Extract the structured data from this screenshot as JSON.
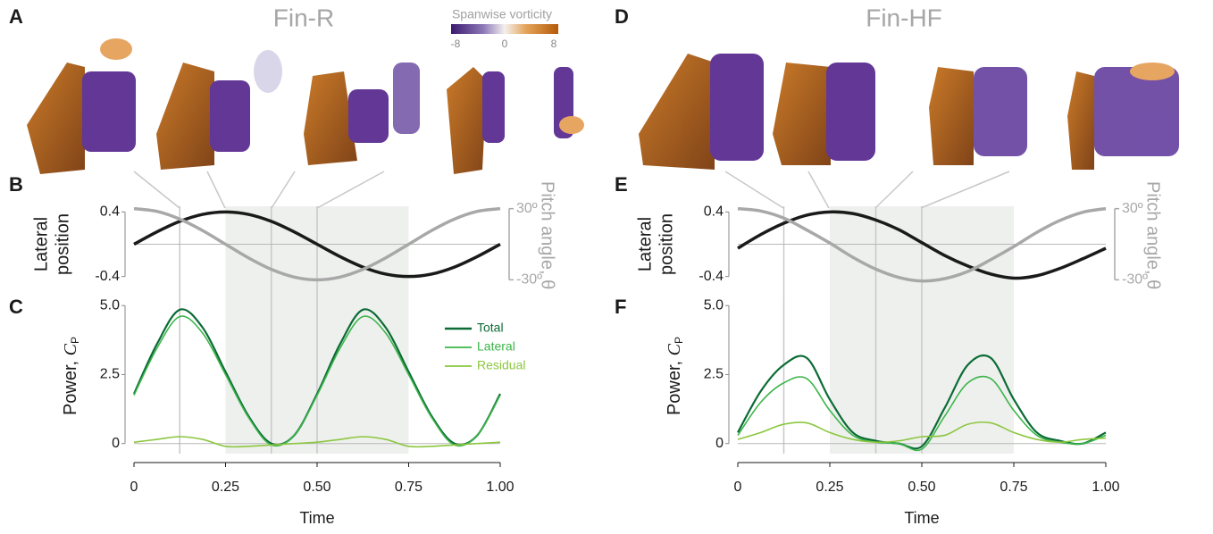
{
  "panel_labels": [
    "A",
    "B",
    "C",
    "D",
    "E",
    "F"
  ],
  "figures": [
    {
      "title": "Fin-R"
    },
    {
      "title": "Fin-HF"
    }
  ],
  "colorbar": {
    "title": "Spanwise vorticity",
    "ticks": [
      -8,
      0,
      8
    ]
  },
  "chart_data": [
    {
      "type": "line",
      "ylabel": [
        "Lateral",
        "position"
      ],
      "y2label": "Pitch  angle, θ",
      "x": [
        0,
        0.0625,
        0.125,
        0.1875,
        0.25,
        0.3125,
        0.375,
        0.4375,
        0.5,
        0.5625,
        0.625,
        0.6875,
        0.75,
        0.8125,
        0.875,
        0.9375,
        1
      ],
      "xlim": [
        0,
        1
      ],
      "ylim": [
        -0.47,
        0.47
      ],
      "yticks": [
        -0.4,
        0.4
      ],
      "y2lim": [
        -32,
        32
      ],
      "y2ticks": [
        {
          "value": -30,
          "label": "-30º"
        },
        {
          "value": 30,
          "label": "30º"
        }
      ],
      "shade": [
        0.25,
        0.75
      ],
      "marker_lines": [
        0.125,
        0.375,
        0.5
      ],
      "zero_line": true,
      "series": [
        {
          "color": "#1a1a1a",
          "values": [
            0,
            0.153,
            0.283,
            0.37,
            0.4,
            0.37,
            0.283,
            0.153,
            0,
            -0.153,
            -0.283,
            -0.37,
            -0.4,
            -0.37,
            -0.283,
            -0.153,
            0
          ]
        },
        {
          "color": "#a8a8a8",
          "axis": "y2",
          "values": [
            30,
            27.7,
            21.2,
            11.5,
            0,
            -11.5,
            -21.2,
            -27.7,
            -30,
            -27.7,
            -21.2,
            -11.5,
            0,
            11.5,
            21.2,
            27.7,
            30
          ]
        }
      ]
    },
    {
      "type": "line",
      "ylabel": [
        "Power, ",
        "C",
        "P"
      ],
      "xlabel": "Time",
      "x": [
        0,
        0.0625,
        0.125,
        0.1875,
        0.25,
        0.3125,
        0.375,
        0.4375,
        0.5,
        0.5625,
        0.625,
        0.6875,
        0.75,
        0.8125,
        0.875,
        0.9375,
        1
      ],
      "xlim": [
        0,
        1
      ],
      "xticks": [
        0,
        0.25,
        {
          "value": 0.5,
          "label": "0.50"
        },
        0.75,
        {
          "value": 1,
          "label": "1.00"
        }
      ],
      "ylim": [
        -0.3,
        5.2
      ],
      "yticks": [
        0,
        2.5,
        {
          "value": 5,
          "label": "5.0"
        }
      ],
      "shade": [
        0.25,
        0.75
      ],
      "marker_lines": [
        0.125,
        0.375,
        0.5
      ],
      "zero_line": true,
      "legend": "upper right",
      "series": [
        {
          "name": "Total",
          "color": "#0b6b35",
          "values": [
            1.8,
            3.6,
            4.85,
            4.2,
            2.6,
            1.0,
            0.0,
            0.3,
            1.8,
            3.6,
            4.85,
            4.2,
            2.6,
            1.0,
            0.0,
            0.3,
            1.8
          ]
        },
        {
          "name": "Lateral",
          "color": "#3cb54a",
          "values": [
            1.75,
            3.45,
            4.6,
            4.0,
            2.5,
            0.95,
            -0.05,
            0.3,
            1.75,
            3.45,
            4.6,
            4.0,
            2.5,
            0.95,
            -0.05,
            0.3,
            1.75
          ]
        },
        {
          "name": "Residual",
          "color": "#8cc63f",
          "values": [
            0.05,
            0.15,
            0.25,
            0.15,
            -0.1,
            -0.1,
            -0.05,
            0.0,
            0.05,
            0.15,
            0.25,
            0.15,
            -0.1,
            -0.1,
            -0.05,
            0.0,
            0.05
          ]
        }
      ]
    },
    {
      "type": "line",
      "ylabel": [
        "Lateral",
        "position"
      ],
      "y2label": "Pitch  angle, θ",
      "x": [
        0,
        0.0625,
        0.125,
        0.1875,
        0.25,
        0.3125,
        0.375,
        0.4375,
        0.5,
        0.5625,
        0.625,
        0.6875,
        0.75,
        0.8125,
        0.875,
        0.9375,
        1
      ],
      "xlim": [
        0,
        1
      ],
      "ylim": [
        -0.47,
        0.47
      ],
      "yticks": [
        -0.4,
        0.4
      ],
      "y2lim": [
        -32,
        32
      ],
      "y2ticks": [
        {
          "value": -30,
          "label": "-30º"
        },
        {
          "value": 30,
          "label": "30º"
        }
      ],
      "shade": [
        0.25,
        0.75
      ],
      "marker_lines": [
        0.125,
        0.375,
        0.5
      ],
      "zero_line": true,
      "series": [
        {
          "color": "#1a1a1a",
          "values": [
            -0.05,
            0.12,
            0.26,
            0.36,
            0.4,
            0.38,
            0.3,
            0.18,
            0.02,
            -0.14,
            -0.27,
            -0.37,
            -0.42,
            -0.39,
            -0.3,
            -0.18,
            -0.05
          ]
        },
        {
          "color": "#a8a8a8",
          "axis": "y2",
          "values": [
            30,
            28,
            22,
            12,
            1,
            -11,
            -21,
            -28,
            -31,
            -29,
            -23,
            -13,
            -2,
            10,
            20,
            27,
            30
          ]
        }
      ]
    },
    {
      "type": "line",
      "ylabel": [
        "Power, ",
        "C",
        "P"
      ],
      "xlabel": "Time",
      "x": [
        0,
        0.0625,
        0.125,
        0.1875,
        0.25,
        0.3125,
        0.375,
        0.4375,
        0.5,
        0.5625,
        0.625,
        0.6875,
        0.75,
        0.8125,
        0.875,
        0.9375,
        1
      ],
      "xlim": [
        0,
        1
      ],
      "xticks": [
        0,
        0.25,
        {
          "value": 0.5,
          "label": "0.50"
        },
        0.75,
        {
          "value": 1,
          "label": "1.00"
        }
      ],
      "ylim": [
        -0.3,
        5.2
      ],
      "yticks": [
        0,
        2.5,
        {
          "value": 5,
          "label": "5.0"
        }
      ],
      "shade": [
        0.25,
        0.75
      ],
      "marker_lines": [
        0.125,
        0.375,
        0.5
      ],
      "zero_line": true,
      "series": [
        {
          "color": "#0b6b35",
          "values": [
            0.4,
            1.9,
            2.85,
            3.1,
            1.6,
            0.4,
            0.1,
            0.0,
            -0.1,
            1.3,
            2.85,
            3.1,
            1.6,
            0.4,
            0.1,
            0.0,
            0.4
          ]
        },
        {
          "color": "#3cb54a",
          "values": [
            0.3,
            1.5,
            2.2,
            2.35,
            1.2,
            0.3,
            0.05,
            0.0,
            -0.2,
            1.0,
            2.2,
            2.35,
            1.2,
            0.3,
            0.05,
            0.0,
            0.3
          ]
        },
        {
          "color": "#8cc63f",
          "values": [
            0.15,
            0.4,
            0.7,
            0.75,
            0.4,
            0.15,
            0.05,
            0.1,
            0.25,
            0.3,
            0.7,
            0.75,
            0.4,
            0.15,
            0.05,
            0.15,
            0.2
          ]
        }
      ]
    }
  ]
}
